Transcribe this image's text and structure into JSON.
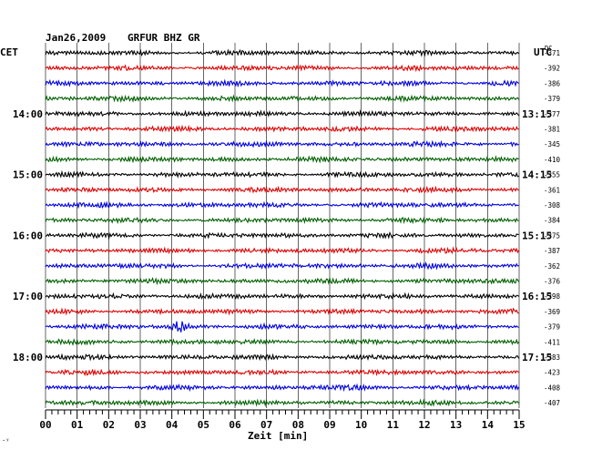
{
  "header": {
    "date": "Jan26,2009",
    "station": "GRFUR BHZ GR"
  },
  "left_tz": "CET",
  "right_tz": "UTC",
  "dc_label": "DC",
  "corner_mark": "·ʸ",
  "chart_data": {
    "type": "line",
    "title": "Jan26,2009   GRFUR BHZ GR",
    "xlabel": "Zeit [min]",
    "x_ticks": [
      "00",
      "01",
      "02",
      "03",
      "04",
      "05",
      "06",
      "07",
      "08",
      "09",
      "10",
      "11",
      "12",
      "13",
      "14",
      "15"
    ],
    "xlim": [
      0,
      15
    ],
    "trace_colors": [
      "#000000",
      "#e00000",
      "#0000e0",
      "#006000"
    ],
    "left_hour_labels": [
      {
        "row": 4,
        "text": "14:00"
      },
      {
        "row": 8,
        "text": "15:00"
      },
      {
        "row": 12,
        "text": "16:00"
      },
      {
        "row": 16,
        "text": "17:00"
      },
      {
        "row": 20,
        "text": "18:00"
      }
    ],
    "right_hour_labels": [
      {
        "row": 4,
        "text": "13:15"
      },
      {
        "row": 8,
        "text": "14:15"
      },
      {
        "row": 12,
        "text": "15:15"
      },
      {
        "row": 16,
        "text": "16:15"
      },
      {
        "row": 20,
        "text": "17:15"
      }
    ],
    "dc_offsets": [
      "-371",
      "-392",
      "-386",
      "-379",
      "-377",
      "-381",
      "-345",
      "-410",
      "-355",
      "-361",
      "-308",
      "-384",
      "-375",
      "-387",
      "-362",
      "-376",
      "-398",
      "-369",
      "-379",
      "-411",
      "-383",
      "-423",
      "-408",
      "-407"
    ],
    "event": {
      "row": 18,
      "minute_start": 3.9,
      "minute_end": 4.6
    }
  }
}
